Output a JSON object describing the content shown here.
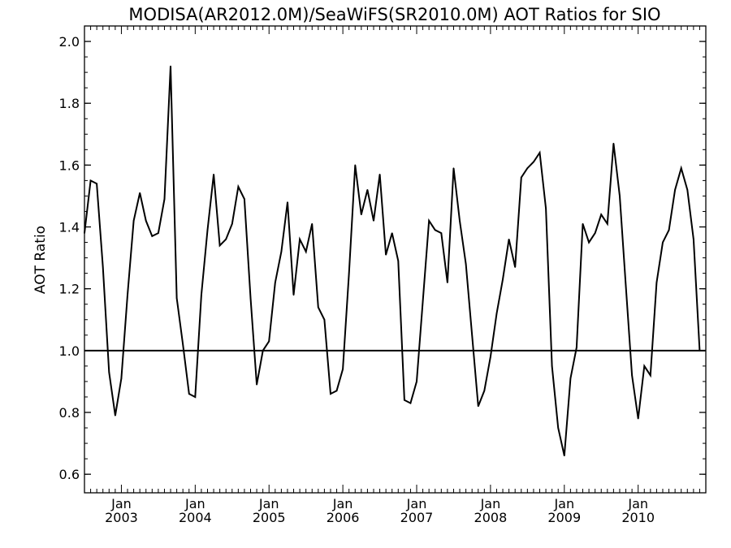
{
  "chart_data": {
    "type": "line",
    "title": "MODISA(AR2012.0M)/SeaWiFS(SR2010.0M)  AOT Ratios for SIO",
    "xlabel": "",
    "ylabel": "AOT Ratio",
    "ylim": [
      0.54,
      2.05
    ],
    "xlim": [
      "2002-07",
      "2010-12"
    ],
    "yticks": [
      "0.6",
      "0.8",
      "1.0",
      "1.2",
      "1.4",
      "1.6",
      "1.8",
      "2.0"
    ],
    "xticks": [
      {
        "month": "Jan",
        "year": "2003"
      },
      {
        "month": "Jan",
        "year": "2004"
      },
      {
        "month": "Jan",
        "year": "2005"
      },
      {
        "month": "Jan",
        "year": "2006"
      },
      {
        "month": "Jan",
        "year": "2007"
      },
      {
        "month": "Jan",
        "year": "2008"
      },
      {
        "month": "Jan",
        "year": "2009"
      },
      {
        "month": "Jan",
        "year": "2010"
      }
    ],
    "reference_line": 1.0,
    "grid": false,
    "series": [
      {
        "x": [
          "2002-07",
          "2002-08",
          "2002-09",
          "2002-10",
          "2002-11",
          "2002-12",
          "2003-01",
          "2003-02",
          "2003-03",
          "2003-04",
          "2003-05",
          "2003-06",
          "2003-07",
          "2003-08",
          "2003-09",
          "2003-10",
          "2003-11",
          "2003-12",
          "2004-01",
          "2004-02",
          "2004-03",
          "2004-04",
          "2004-05",
          "2004-06",
          "2004-07",
          "2004-08",
          "2004-09",
          "2004-10",
          "2004-11",
          "2004-12",
          "2005-01",
          "2005-02",
          "2005-03",
          "2005-04",
          "2005-05",
          "2005-06",
          "2005-07",
          "2005-08",
          "2005-09",
          "2005-10",
          "2005-11",
          "2005-12",
          "2006-01",
          "2006-02",
          "2006-03",
          "2006-04",
          "2006-05",
          "2006-06",
          "2006-07",
          "2006-08",
          "2006-09",
          "2006-10",
          "2006-11",
          "2006-12",
          "2007-01",
          "2007-02",
          "2007-03",
          "2007-04",
          "2007-05",
          "2007-06",
          "2007-07",
          "2007-08",
          "2007-09",
          "2007-10",
          "2007-11",
          "2007-12",
          "2008-01",
          "2008-02",
          "2008-03",
          "2008-04",
          "2008-05",
          "2008-06",
          "2008-07",
          "2008-08",
          "2008-09",
          "2008-10",
          "2008-11",
          "2008-12",
          "2009-01",
          "2009-02",
          "2009-03",
          "2009-04",
          "2009-05",
          "2009-06",
          "2009-07",
          "2009-08",
          "2009-09",
          "2009-10",
          "2009-11",
          "2009-12",
          "2010-01",
          "2010-02",
          "2010-03",
          "2010-04",
          "2010-05",
          "2010-06",
          "2010-07",
          "2010-08",
          "2010-09",
          "2010-10",
          "2010-11"
        ],
        "values": [
          1.38,
          1.55,
          1.54,
          1.27,
          0.93,
          0.79,
          0.91,
          1.18,
          1.42,
          1.51,
          1.42,
          1.37,
          1.38,
          1.49,
          1.92,
          1.17,
          1.02,
          0.86,
          0.85,
          1.18,
          1.39,
          1.57,
          1.34,
          1.36,
          1.41,
          1.53,
          1.49,
          1.17,
          0.89,
          1.0,
          1.03,
          1.22,
          1.32,
          1.48,
          1.18,
          1.36,
          1.32,
          1.41,
          1.14,
          1.1,
          0.86,
          0.87,
          0.94,
          1.25,
          1.6,
          1.44,
          1.52,
          1.42,
          1.57,
          1.31,
          1.38,
          1.29,
          0.84,
          0.83,
          0.9,
          1.16,
          1.42,
          1.39,
          1.38,
          1.22,
          1.59,
          1.42,
          1.28,
          1.05,
          0.82,
          0.87,
          0.98,
          1.12,
          1.23,
          1.36,
          1.27,
          1.56,
          1.59,
          1.61,
          1.64,
          1.46,
          0.95,
          0.75,
          0.66,
          0.91,
          1.01,
          1.41,
          1.35,
          1.38,
          1.44,
          1.41,
          1.67,
          1.5,
          1.21,
          0.92,
          0.78,
          0.95,
          0.92,
          1.22,
          1.35,
          1.39,
          1.52,
          1.59,
          1.52,
          1.36,
          1.0
        ]
      }
    ]
  }
}
